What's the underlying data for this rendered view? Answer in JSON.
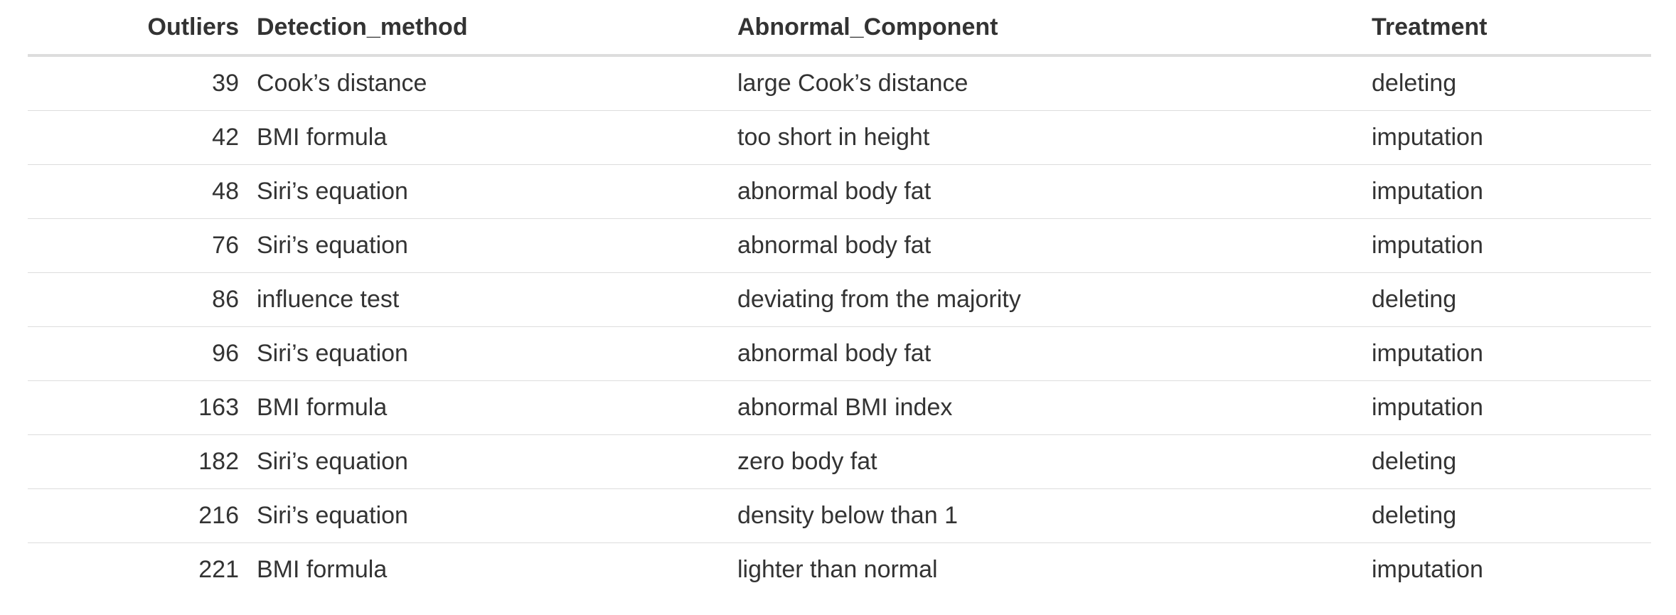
{
  "table": {
    "columns": [
      "Outliers",
      "Detection_method",
      "Abnormal_Component",
      "Treatment"
    ],
    "rows": [
      {
        "outliers": "39",
        "method": "Cook’s distance",
        "component": "large Cook’s distance",
        "treatment": "deleting"
      },
      {
        "outliers": "42",
        "method": "BMI formula",
        "component": "too short in height",
        "treatment": "imputation"
      },
      {
        "outliers": "48",
        "method": "Siri’s equation",
        "component": "abnormal body fat",
        "treatment": "imputation"
      },
      {
        "outliers": "76",
        "method": "Siri’s equation",
        "component": "abnormal body fat",
        "treatment": "imputation"
      },
      {
        "outliers": "86",
        "method": "influence test",
        "component": "deviating from the majority",
        "treatment": "deleting"
      },
      {
        "outliers": "96",
        "method": "Siri’s equation",
        "component": "abnormal body fat",
        "treatment": "imputation"
      },
      {
        "outliers": "163",
        "method": "BMI formula",
        "component": "abnormal BMI index",
        "treatment": "imputation"
      },
      {
        "outliers": "182",
        "method": "Siri’s equation",
        "component": "zero body fat",
        "treatment": "deleting"
      },
      {
        "outliers": "216",
        "method": "Siri’s equation",
        "component": "density below than 1",
        "treatment": "deleting"
      },
      {
        "outliers": "221",
        "method": "BMI formula",
        "component": "lighter than normal",
        "treatment": "imputation"
      }
    ]
  },
  "colors": {
    "text": "#333333",
    "border": "#dddddd",
    "background": "#ffffff"
  }
}
